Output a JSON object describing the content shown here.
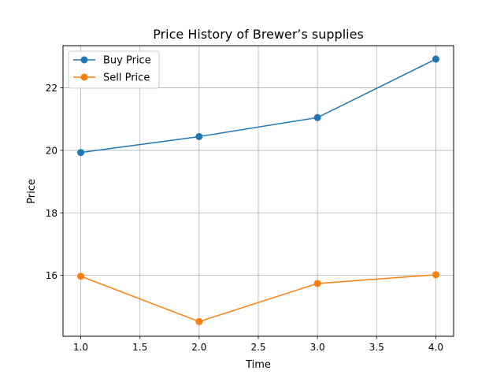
{
  "chart_data": {
    "type": "line",
    "title": "Price History of Brewer’s supplies",
    "xlabel": "Time",
    "ylabel": "Price",
    "x": [
      1.0,
      2.0,
      3.0,
      4.0
    ],
    "xlim": [
      0.85,
      4.15
    ],
    "ylim": [
      14.05,
      23.35
    ],
    "xticks": [
      1.0,
      1.5,
      2.0,
      2.5,
      3.0,
      3.5,
      4.0
    ],
    "xtick_labels": [
      "1.0",
      "1.5",
      "2.0",
      "2.5",
      "3.0",
      "3.5",
      "4.0"
    ],
    "yticks": [
      16,
      18,
      20,
      22
    ],
    "ytick_labels": [
      "16",
      "18",
      "20",
      "22"
    ],
    "grid": true,
    "legend_position": "top-left",
    "series": [
      {
        "name": "Buy Price",
        "values": [
          19.93,
          20.44,
          21.05,
          22.92
        ],
        "color": "#1f77b4"
      },
      {
        "name": "Sell Price",
        "values": [
          15.97,
          14.52,
          15.74,
          16.02
        ],
        "color": "#ff7f0e"
      }
    ]
  }
}
